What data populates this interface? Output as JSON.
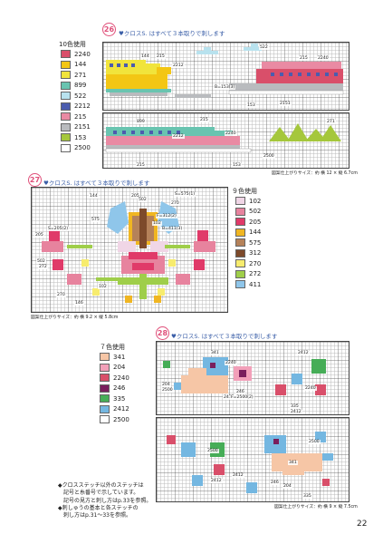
{
  "pattern26": {
    "number": "26",
    "note": "クロスS. はすべて３本取りで刺します",
    "usage": "10色使用",
    "colors": [
      {
        "code": "2240",
        "color": "#d94f6a"
      },
      {
        "code": "144",
        "color": "#f3c614"
      },
      {
        "code": "271",
        "color": "#f1e43b"
      },
      {
        "code": "899",
        "color": "#69c4b0"
      },
      {
        "code": "522",
        "color": "#b8e2ee"
      },
      {
        "code": "2212",
        "color": "#4b5cae"
      },
      {
        "code": "215",
        "color": "#e98aa3"
      },
      {
        "code": "2151",
        "color": "#b9bbbe"
      },
      {
        "code": "153",
        "color": "#a5c73c"
      },
      {
        "code": "2500",
        "color": "#ffffff"
      }
    ],
    "labels": [
      "144",
      "215",
      "2212",
      "522",
      "215",
      "2240",
      "B=153(3)",
      "153",
      "2151",
      "215",
      "899",
      "2240",
      "2212",
      "271",
      "2500",
      "153",
      "215"
    ],
    "size": "図案仕上がりサイズ：約 横 12 × 縦 6.7cm"
  },
  "pattern27": {
    "number": "27",
    "note": "クロスS. はすべて３本取りで刺します",
    "usage": "９色使用",
    "colors": [
      {
        "code": "102",
        "color": "#f0d6e6"
      },
      {
        "code": "502",
        "color": "#e7839e"
      },
      {
        "code": "205",
        "color": "#e03a69"
      },
      {
        "code": "144",
        "color": "#f0b622"
      },
      {
        "code": "575",
        "color": "#b5825a"
      },
      {
        "code": "312",
        "color": "#7d4a2b"
      },
      {
        "code": "270",
        "color": "#f7ec6e"
      },
      {
        "code": "272",
        "color": "#9fce4a"
      },
      {
        "code": "411",
        "color": "#8fc6ea"
      }
    ],
    "labels": [
      "144",
      "205",
      "502",
      "S=575(1)",
      "575",
      "270",
      "F=312(2)",
      "102",
      "B=411(3)",
      "S=205(2)",
      "205",
      "502",
      "272",
      "102",
      "270",
      "146"
    ],
    "size": "図案仕上がりサイズ：約 横 9.2 × 縦 5.8cm"
  },
  "pattern28": {
    "number": "28",
    "note": "クロスS. はすべて３本取りで刺します",
    "usage": "７色使用",
    "colors": [
      {
        "code": "341",
        "color": "#f6c6a6"
      },
      {
        "code": "204",
        "color": "#f2a0b9"
      },
      {
        "code": "2240",
        "color": "#d94f6a"
      },
      {
        "code": "246",
        "color": "#7a1f5d"
      },
      {
        "code": "335",
        "color": "#46ad57"
      },
      {
        "code": "2412",
        "color": "#74b7e1"
      },
      {
        "code": "2500",
        "color": "#ffffff"
      }
    ],
    "labels": [
      "341",
      "2412",
      "2240",
      "204",
      "2500",
      "2412",
      "246",
      "F=2500(2)",
      "2240",
      "335",
      "2412",
      "2500",
      "341",
      "2500",
      "2412",
      "246",
      "335",
      "204",
      "2412"
    ],
    "size": "図案仕上がりサイズ：約 横 9 × 縦 7.5cm"
  },
  "footnote": [
    "◆クロスステッチ以外のステッチは",
    "　記号と糸番号で示しています。",
    "　記号の見方と刺し方はp.33を参照。",
    "◆刺しゅうの基本と各ステッチの",
    "　刺し方はp.31〜33を参照。"
  ],
  "page_number": "22"
}
